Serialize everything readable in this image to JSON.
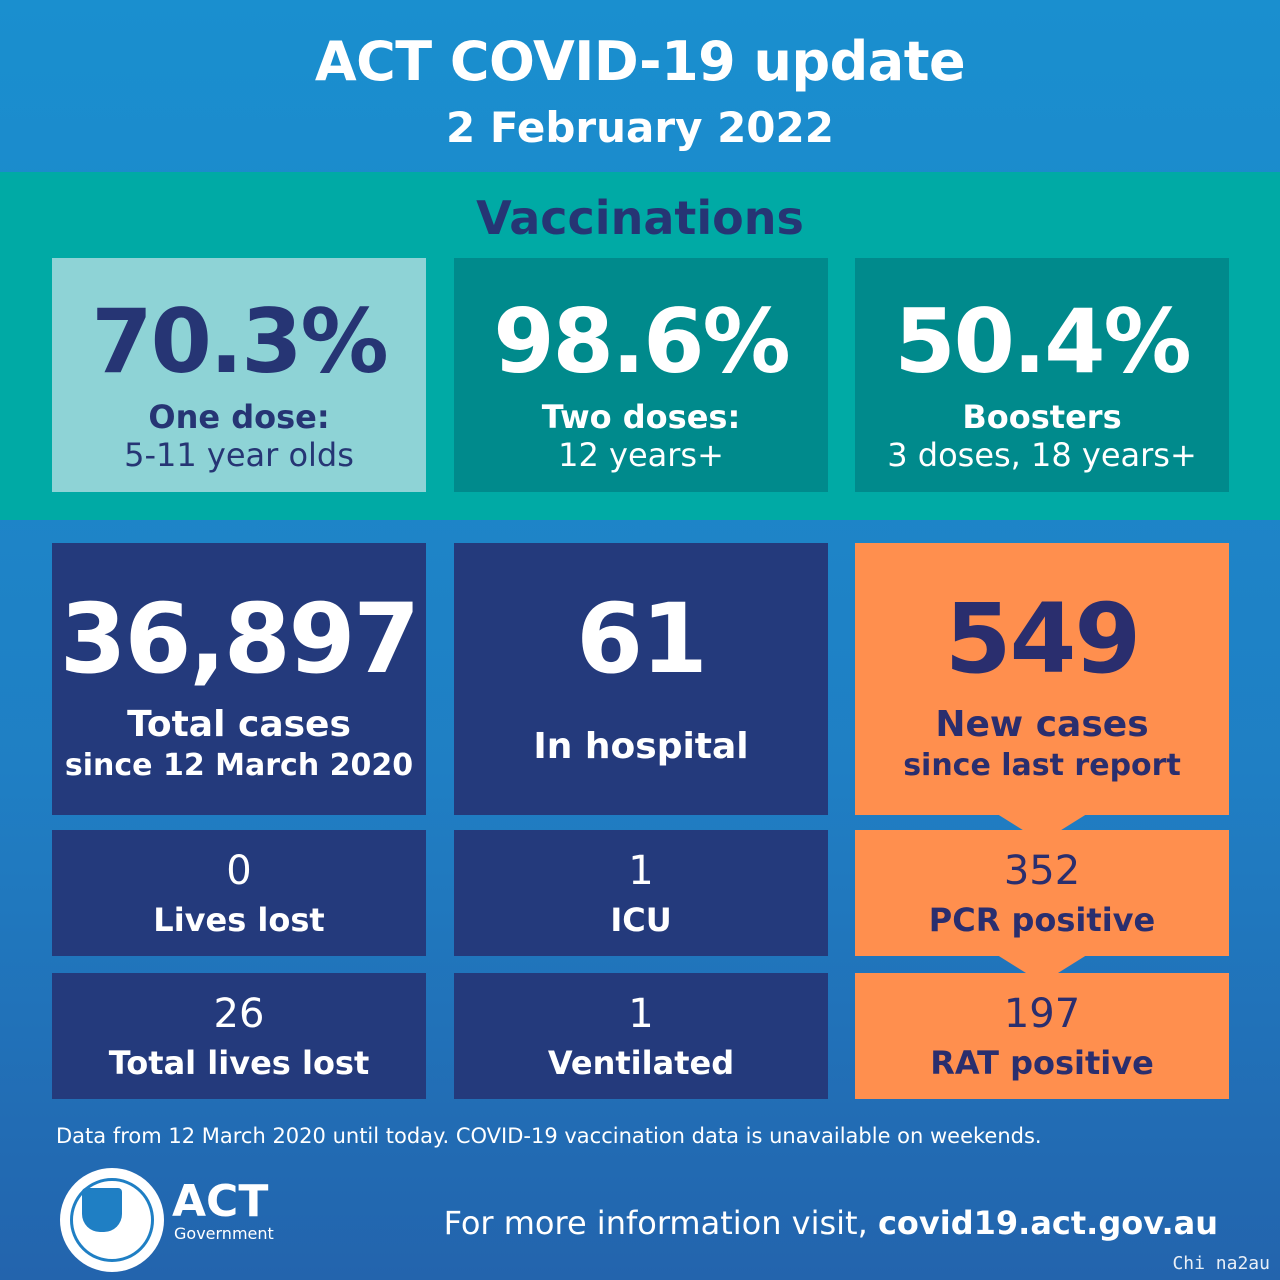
{
  "header": {
    "title": "ACT COVID-19 update",
    "date": "2 February 2022"
  },
  "vaccinations": {
    "heading": "Vaccinations",
    "items": [
      {
        "value": "70.3%",
        "label": "One dose:",
        "sub": "5-11 year olds"
      },
      {
        "value": "98.6%",
        "label": "Two doses:",
        "sub": "12 years+"
      },
      {
        "value": "50.4%",
        "label": "Boosters",
        "sub": "3 doses, 18 years+"
      }
    ]
  },
  "stats": {
    "total_cases": {
      "value": "36,897",
      "label": "Total cases",
      "sub": "since 12 March 2020"
    },
    "in_hospital": {
      "value": "61",
      "label": "In hospital"
    },
    "new_cases": {
      "value": "549",
      "label": "New cases",
      "sub": "since last report"
    },
    "lives_lost": {
      "value": "0",
      "label": "Lives lost"
    },
    "icu": {
      "value": "1",
      "label": "ICU"
    },
    "pcr": {
      "value": "352",
      "label": "PCR positive"
    },
    "total_lives_lost": {
      "value": "26",
      "label": "Total lives lost"
    },
    "ventilated": {
      "value": "1",
      "label": "Ventilated"
    },
    "rat": {
      "value": "197",
      "label": "RAT positive"
    }
  },
  "footnote": "Data from 12 March 2020 until today.  COVID-19 vaccination data is unavailable on weekends.",
  "footer": {
    "brand": "ACT",
    "brand_sub": "Government",
    "more_prefix": "For more information visit, ",
    "more_link": "covid19.act.gov.au"
  },
  "watermark": "Chi na2au",
  "colors": {
    "teal": "#00aaa5",
    "navy": "#243a7c",
    "orange": "#ff8f4e",
    "blue": "#1f7fc4"
  }
}
